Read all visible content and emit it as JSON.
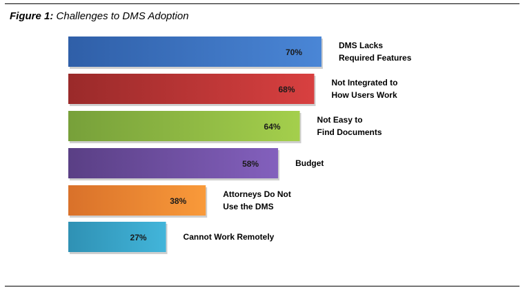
{
  "figure": {
    "label": "Figure 1:",
    "title": "Challenges to DMS Adoption"
  },
  "chart_data": {
    "type": "bar",
    "orientation": "horizontal",
    "title": "Challenges to DMS Adoption",
    "categories": [
      [
        "DMS Lacks",
        "Required Features"
      ],
      [
        "Not Integrated to",
        "How Users Work"
      ],
      [
        "Not Easy to",
        "Find Documents"
      ],
      [
        "Budget"
      ],
      [
        "Attorneys Do Not",
        "Use the DMS"
      ],
      [
        "Cannot Work Remotely"
      ]
    ],
    "values": [
      70,
      68,
      64,
      58,
      38,
      27
    ],
    "value_labels": [
      "70%",
      "68%",
      "64%",
      "58%",
      "38%",
      "27%"
    ],
    "unit": "%",
    "colors": [
      [
        "#2f5fa8",
        "#4a86d6"
      ],
      [
        "#9a2a2a",
        "#d84040"
      ],
      [
        "#77a03a",
        "#a4cf4c"
      ],
      [
        "#5a3f85",
        "#8360bd"
      ],
      [
        "#d9712a",
        "#f99a3a"
      ],
      [
        "#2f91b4",
        "#42b5da"
      ]
    ],
    "grid": false,
    "legend": "none"
  }
}
